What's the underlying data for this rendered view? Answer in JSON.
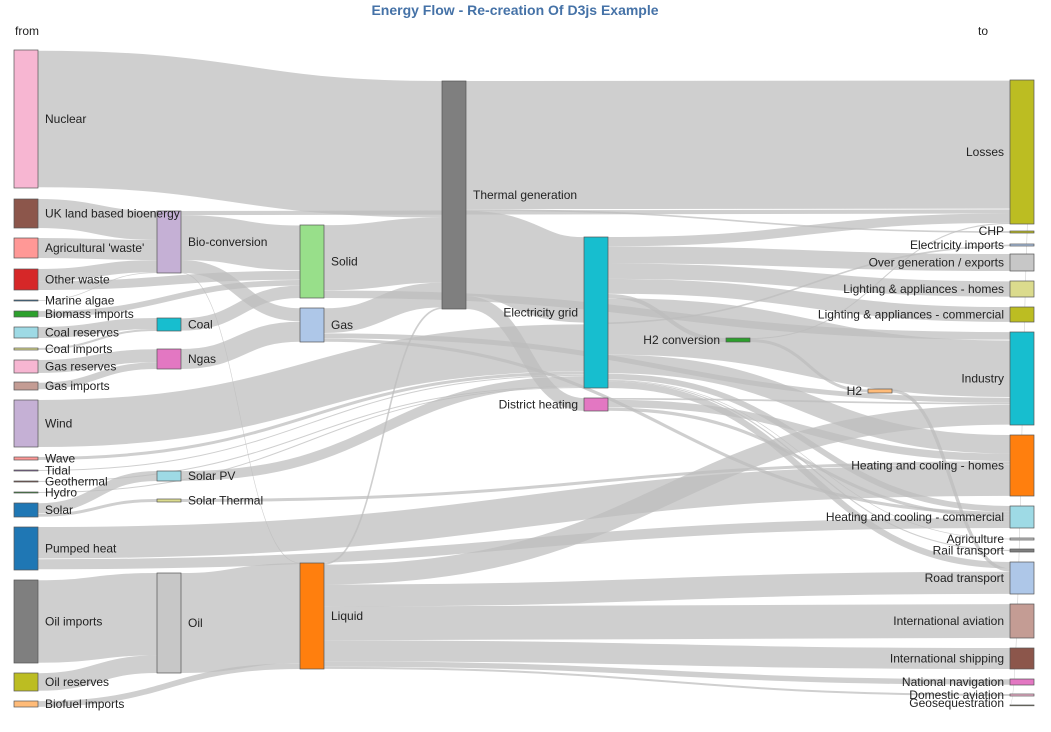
{
  "chart_data": {
    "type": "sankey",
    "title": "Energy Flow - Re-creation Of D3js Example",
    "left_header": "from",
    "right_header": "to",
    "colors": {
      "link": "#bdbdbd"
    },
    "nodes": [
      {
        "name": "Nuclear",
        "color": "#f7b6d2"
      },
      {
        "name": "UK land based bioenergy",
        "color": "#8c564b"
      },
      {
        "name": "Agricultural 'waste'",
        "color": "#ff9896"
      },
      {
        "name": "Other waste",
        "color": "#d62728"
      },
      {
        "name": "Marine algae",
        "color": "#1f77b4"
      },
      {
        "name": "Biomass imports",
        "color": "#2ca02c"
      },
      {
        "name": "Coal reserves",
        "color": "#9edae5"
      },
      {
        "name": "Coal imports",
        "color": "#dbdb8d"
      },
      {
        "name": "Gas reserves",
        "color": "#f7b6d2"
      },
      {
        "name": "Gas imports",
        "color": "#c49c94"
      },
      {
        "name": "Wind",
        "color": "#c5b0d5"
      },
      {
        "name": "Wave",
        "color": "#ff9896"
      },
      {
        "name": "Tidal",
        "color": "#9467bd"
      },
      {
        "name": "Geothermal",
        "color": "#8c564b"
      },
      {
        "name": "Hydro",
        "color": "#2ca02c"
      },
      {
        "name": "Solar",
        "color": "#1f77b4"
      },
      {
        "name": "Pumped heat",
        "color": "#1f77b4"
      },
      {
        "name": "Oil imports",
        "color": "#7f7f7f"
      },
      {
        "name": "Oil reserves",
        "color": "#bcbd22"
      },
      {
        "name": "Biofuel imports",
        "color": "#ffbb78"
      },
      {
        "name": "Bio-conversion",
        "color": "#c5b0d5"
      },
      {
        "name": "Coal",
        "color": "#17becf"
      },
      {
        "name": "Ngas",
        "color": "#e377c2"
      },
      {
        "name": "Solar PV",
        "color": "#9edae5"
      },
      {
        "name": "Solar Thermal",
        "color": "#dbdb8d"
      },
      {
        "name": "Oil",
        "color": "#c7c7c7"
      },
      {
        "name": "Solid",
        "color": "#98df8a"
      },
      {
        "name": "Gas",
        "color": "#aec7e8"
      },
      {
        "name": "Liquid",
        "color": "#ff7f0e"
      },
      {
        "name": "Thermal generation",
        "color": "#7f7f7f"
      },
      {
        "name": "Electricity grid",
        "color": "#17becf"
      },
      {
        "name": "District heating",
        "color": "#e377c2"
      },
      {
        "name": "H2 conversion",
        "color": "#2ca02c"
      },
      {
        "name": "H2",
        "color": "#ffbb78"
      },
      {
        "name": "Losses",
        "color": "#bcbd22"
      },
      {
        "name": "CHP",
        "color": "#bcbd22"
      },
      {
        "name": "Electricity imports",
        "color": "#aec7e8"
      },
      {
        "name": "Over generation / exports",
        "color": "#c7c7c7"
      },
      {
        "name": "Lighting & appliances - homes",
        "color": "#dbdb8d"
      },
      {
        "name": "Lighting & appliances - commercial",
        "color": "#bcbd22"
      },
      {
        "name": "Industry",
        "color": "#17becf"
      },
      {
        "name": "Heating and cooling - homes",
        "color": "#ff7f0e"
      },
      {
        "name": "Heating and cooling - commercial",
        "color": "#9edae5"
      },
      {
        "name": "Agriculture",
        "color": "#c7c7c7"
      },
      {
        "name": "Rail transport",
        "color": "#7f7f7f"
      },
      {
        "name": "Road transport",
        "color": "#aec7e8"
      },
      {
        "name": "International aviation",
        "color": "#c49c94"
      },
      {
        "name": "International shipping",
        "color": "#8c564b"
      },
      {
        "name": "National navigation",
        "color": "#e377c2"
      },
      {
        "name": "Domestic aviation",
        "color": "#f7b6d2"
      },
      {
        "name": "Geosequestration",
        "color": "#dbdb8d"
      }
    ],
    "links": [
      {
        "source": "Nuclear",
        "target": "Thermal generation",
        "value": 839
      },
      {
        "source": "UK land based bioenergy",
        "target": "Bio-conversion",
        "value": 182
      },
      {
        "source": "Agricultural 'waste'",
        "target": "Bio-conversion",
        "value": 125
      },
      {
        "source": "Other waste",
        "target": "Bio-conversion",
        "value": 77
      },
      {
        "source": "Other waste",
        "target": "Solid",
        "value": 56.6
      },
      {
        "source": "Marine algae",
        "target": "Bio-conversion",
        "value": 4.4
      },
      {
        "source": "Biomass imports",
        "target": "Solid",
        "value": 35
      },
      {
        "source": "Coal reserves",
        "target": "Coal",
        "value": 63.9
      },
      {
        "source": "Coal imports",
        "target": "Coal",
        "value": 11.6
      },
      {
        "source": "Gas reserves",
        "target": "Ngas",
        "value": 82.2
      },
      {
        "source": "Gas imports",
        "target": "Ngas",
        "value": 40.7
      },
      {
        "source": "Wind",
        "target": "Electricity grid",
        "value": 289
      },
      {
        "source": "Wave",
        "target": "Electricity grid",
        "value": 19
      },
      {
        "source": "Tidal",
        "target": "Electricity grid",
        "value": 9
      },
      {
        "source": "Geothermal",
        "target": "Electricity grid",
        "value": 7
      },
      {
        "source": "Hydro",
        "target": "Electricity grid",
        "value": 6
      },
      {
        "source": "Solar",
        "target": "Solar PV",
        "value": 59.9
      },
      {
        "source": "Solar",
        "target": "Solar Thermal",
        "value": 19.3
      },
      {
        "source": "Pumped heat",
        "target": "Heating and cooling - homes",
        "value": 193
      },
      {
        "source": "Pumped heat",
        "target": "Heating and cooling - commercial",
        "value": 70.7
      },
      {
        "source": "Oil imports",
        "target": "Oil",
        "value": 504
      },
      {
        "source": "Oil reserves",
        "target": "Oil",
        "value": 107.7
      },
      {
        "source": "Biofuel imports",
        "target": "Liquid",
        "value": 35
      },
      {
        "source": "Bio-conversion",
        "target": "Solid",
        "value": 280
      },
      {
        "source": "Bio-conversion",
        "target": "Gas",
        "value": 81
      },
      {
        "source": "Bio-conversion",
        "target": "Losses",
        "value": 26
      },
      {
        "source": "Bio-conversion",
        "target": "Liquid",
        "value": 0.6
      },
      {
        "source": "Coal",
        "target": "Solid",
        "value": 75.6
      },
      {
        "source": "Ngas",
        "target": "Gas",
        "value": 122.9
      },
      {
        "source": "Solar PV",
        "target": "Electricity grid",
        "value": 59.9
      },
      {
        "source": "Solar Thermal",
        "target": "Heating and cooling - homes",
        "value": 19.3
      },
      {
        "source": "Oil",
        "target": "Liquid",
        "value": 611.9
      },
      {
        "source": "Solid",
        "target": "Thermal generation",
        "value": 400
      },
      {
        "source": "Solid",
        "target": "Industry",
        "value": 46
      },
      {
        "source": "Gas",
        "target": "Thermal generation",
        "value": 151.9
      },
      {
        "source": "Gas",
        "target": "Industry",
        "value": 30
      },
      {
        "source": "Gas",
        "target": "Heating and cooling - commercial",
        "value": 22
      },
      {
        "source": "Liquid",
        "target": "Road transport",
        "value": 135
      },
      {
        "source": "Liquid",
        "target": "International aviation",
        "value": 206
      },
      {
        "source": "Liquid",
        "target": "International shipping",
        "value": 128
      },
      {
        "source": "Liquid",
        "target": "National navigation",
        "value": 33
      },
      {
        "source": "Liquid",
        "target": "Domestic aviation",
        "value": 14
      },
      {
        "source": "Liquid",
        "target": "Industry",
        "value": 121
      },
      {
        "source": "Liquid",
        "target": "Thermal generation",
        "value": 10
      },
      {
        "source": "Thermal generation",
        "target": "Losses",
        "value": 787
      },
      {
        "source": "Thermal generation",
        "target": "Electricity grid",
        "value": 525
      },
      {
        "source": "Thermal generation",
        "target": "District heating",
        "value": 79
      },
      {
        "source": "Thermal generation",
        "target": "CHP",
        "value": 10
      },
      {
        "source": "Electricity grid",
        "target": "Over generation / exports",
        "value": 104
      },
      {
        "source": "Electricity grid",
        "target": "Lighting & appliances - homes",
        "value": 93
      },
      {
        "source": "Electricity grid",
        "target": "Lighting & appliances - commercial",
        "value": 90
      },
      {
        "source": "Electricity grid",
        "target": "Industry",
        "value": 342
      },
      {
        "source": "Electricity grid",
        "target": "Heating and cooling - homes",
        "value": 113
      },
      {
        "source": "Electricity grid",
        "target": "Heating and cooling - commercial",
        "value": 40
      },
      {
        "source": "Electricity grid",
        "target": "H2 conversion",
        "value": 27
      },
      {
        "source": "Electricity grid",
        "target": "Road transport",
        "value": 38
      },
      {
        "source": "Electricity grid",
        "target": "Rail transport",
        "value": 7
      },
      {
        "source": "Electricity grid",
        "target": "Agriculture",
        "value": 4
      },
      {
        "source": "Electricity grid",
        "target": "Losses",
        "value": 56.7
      },
      {
        "source": "Electricity imports",
        "target": "Electricity grid",
        "value": 10
      },
      {
        "source": "District heating",
        "target": "Industry",
        "value": 10
      },
      {
        "source": "District heating",
        "target": "Heating and cooling - homes",
        "value": 46
      },
      {
        "source": "District heating",
        "target": "Heating and cooling - commercial",
        "value": 22
      },
      {
        "source": "H2 conversion",
        "target": "H2",
        "value": 20
      },
      {
        "source": "H2 conversion",
        "target": "Losses",
        "value": 7
      },
      {
        "source": "H2",
        "target": "Road transport",
        "value": 20
      },
      {
        "source": "Losses",
        "target": "Geosequestration",
        "value": 0.1
      }
    ]
  }
}
